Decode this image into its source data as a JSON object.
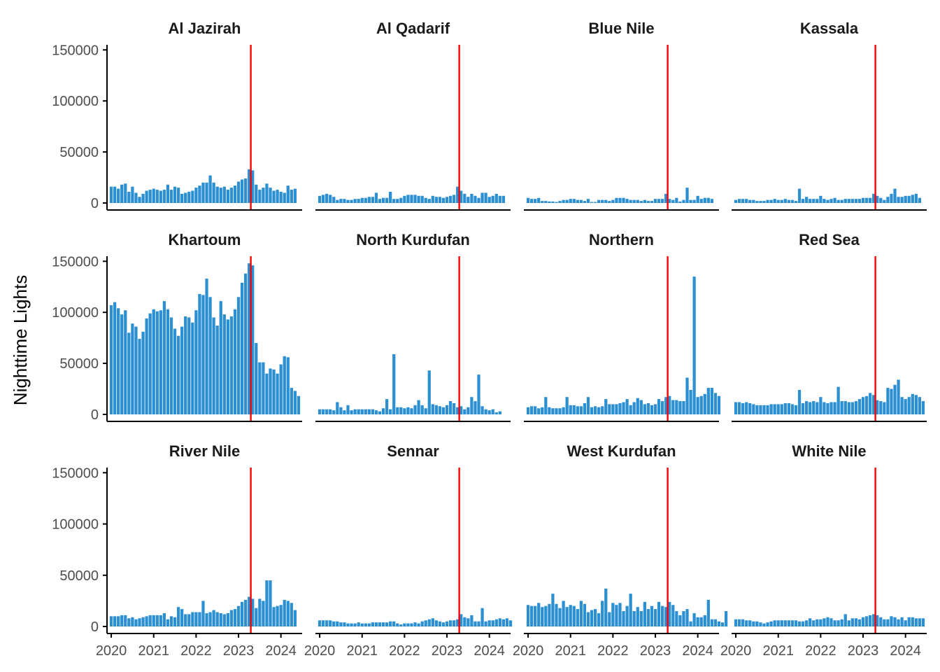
{
  "chart_data": {
    "type": "bar",
    "layout": "facet-grid-3x4",
    "ylabel": "Nighttime Lights",
    "xlabel": "",
    "ylim": [
      0,
      155000
    ],
    "yticks": [
      0,
      50000,
      100000,
      150000
    ],
    "ytick_labels": [
      "0",
      "50000",
      "100000",
      "150000"
    ],
    "xlim": [
      2019.9,
      2024.5
    ],
    "xticks": [
      2020,
      2021,
      2022,
      2023,
      2024
    ],
    "xtick_labels": [
      "2020",
      "2021",
      "2022",
      "2023",
      "2024"
    ],
    "reference_line_x": 2023.29,
    "x_start_year": 2020,
    "months_per_year": 12,
    "bar_color": "#2b8fd1",
    "line_color": "#ff0000",
    "series": [
      {
        "name": "Al Jazirah",
        "values": [
          16000,
          16000,
          14000,
          18000,
          19000,
          11000,
          16000,
          10000,
          6000,
          9000,
          12000,
          13000,
          14000,
          13000,
          12000,
          13000,
          18000,
          13000,
          16000,
          15000,
          9000,
          10000,
          11000,
          12000,
          15000,
          17000,
          20000,
          20000,
          27000,
          20000,
          16000,
          15000,
          16000,
          13000,
          15000,
          17000,
          21000,
          23000,
          24000,
          33000,
          32000,
          18000,
          13000,
          15000,
          19000,
          15000,
          12000,
          13000,
          11000,
          10000,
          17000,
          13000,
          14000
        ]
      },
      {
        "name": "Al Qadarif",
        "values": [
          7000,
          8000,
          9000,
          8000,
          6000,
          3000,
          4000,
          4000,
          3000,
          3000,
          4000,
          4000,
          5000,
          5000,
          6000,
          6000,
          10000,
          4000,
          5000,
          5000,
          11000,
          4000,
          4000,
          5000,
          7000,
          8000,
          8000,
          8000,
          7000,
          7000,
          5000,
          4000,
          7000,
          6000,
          6000,
          5000,
          6000,
          7000,
          8000,
          16000,
          12000,
          9000,
          6000,
          9000,
          7000,
          5000,
          10000,
          10000,
          6000,
          7000,
          9000,
          7000,
          7000
        ]
      },
      {
        "name": "Blue Nile",
        "values": [
          5000,
          4000,
          4000,
          5000,
          2000,
          2000,
          1500,
          1500,
          1000,
          2000,
          3000,
          3000,
          4000,
          4000,
          3000,
          3000,
          2000,
          4000,
          1000,
          1000,
          3000,
          3000,
          3000,
          2000,
          3000,
          5000,
          5000,
          5000,
          4000,
          3000,
          3000,
          3000,
          2000,
          3000,
          2000,
          2000,
          4000,
          4000,
          4000,
          9000,
          4000,
          3000,
          5000,
          1500,
          3000,
          15000,
          3000,
          3000,
          7000,
          4000,
          5000,
          5000,
          4000
        ]
      },
      {
        "name": "Kassala",
        "values": [
          3000,
          4000,
          4000,
          4000,
          3000,
          3000,
          2000,
          2000,
          2000,
          3000,
          3000,
          4000,
          3000,
          3000,
          4000,
          3000,
          3000,
          2000,
          14000,
          4000,
          6000,
          4000,
          4000,
          4000,
          7000,
          4000,
          3000,
          4000,
          5000,
          3000,
          3000,
          4000,
          4000,
          4000,
          4000,
          4000,
          5000,
          5000,
          5000,
          9000,
          7000,
          5000,
          3000,
          6000,
          9000,
          14000,
          6000,
          6000,
          7000,
          7000,
          8000,
          9000,
          5000
        ]
      },
      {
        "name": "Khartoum",
        "values": [
          107000,
          110000,
          104000,
          98000,
          102000,
          80000,
          89000,
          86000,
          74000,
          81000,
          94000,
          99000,
          103000,
          101000,
          102000,
          111000,
          103000,
          95000,
          84000,
          77000,
          86000,
          96000,
          95000,
          90000,
          102000,
          118000,
          117000,
          133000,
          115000,
          95000,
          87000,
          111000,
          98000,
          93000,
          96000,
          103000,
          115000,
          129000,
          138000,
          148000,
          146000,
          70000,
          51000,
          51000,
          40000,
          45000,
          44000,
          40000,
          49000,
          57000,
          56000,
          26000,
          23000,
          18000
        ]
      },
      {
        "name": "North Kurdufan",
        "values": [
          5000,
          5000,
          5000,
          5000,
          4000,
          12000,
          7000,
          4000,
          9000,
          4000,
          5000,
          5000,
          5000,
          5000,
          5000,
          5000,
          4000,
          3000,
          6000,
          15000,
          5000,
          59000,
          7000,
          7000,
          6000,
          7000,
          6000,
          9000,
          14000,
          9000,
          6000,
          43000,
          10000,
          9000,
          8000,
          7000,
          9000,
          13000,
          11000,
          7000,
          8000,
          5000,
          7000,
          17000,
          13000,
          39000,
          8000,
          5000,
          4000,
          5000,
          2000,
          3000
        ]
      },
      {
        "name": "Northern",
        "values": [
          7000,
          8000,
          8000,
          6000,
          7000,
          17000,
          7000,
          6000,
          6000,
          6000,
          7000,
          17000,
          9000,
          9000,
          8000,
          8000,
          11000,
          17000,
          7000,
          8000,
          7000,
          8000,
          15000,
          10000,
          10000,
          10000,
          11000,
          12000,
          15000,
          9000,
          12000,
          16000,
          14000,
          10000,
          11000,
          9000,
          10000,
          15000,
          13000,
          17000,
          18000,
          14000,
          14000,
          13000,
          13000,
          36000,
          24000,
          135000,
          17000,
          18000,
          20000,
          26000,
          26000,
          21000,
          18000
        ]
      },
      {
        "name": "Red Sea",
        "values": [
          12000,
          12000,
          11000,
          12000,
          11000,
          10000,
          9000,
          9000,
          9000,
          9000,
          10000,
          10000,
          10000,
          10000,
          11000,
          11000,
          10000,
          9000,
          24000,
          11000,
          13000,
          12000,
          13000,
          12000,
          17000,
          12000,
          11000,
          12000,
          12000,
          27000,
          13000,
          13000,
          12000,
          12000,
          13000,
          15000,
          17000,
          18000,
          21000,
          19000,
          14000,
          13000,
          12000,
          26000,
          25000,
          29000,
          34000,
          17000,
          15000,
          17000,
          20000,
          19000,
          17000,
          13000
        ]
      },
      {
        "name": "River Nile",
        "values": [
          10000,
          10000,
          10000,
          11000,
          11000,
          8000,
          9000,
          7000,
          8000,
          9000,
          10000,
          11000,
          11000,
          11000,
          11000,
          13000,
          7000,
          10000,
          9000,
          19000,
          17000,
          12000,
          12000,
          14000,
          14000,
          14000,
          25000,
          13000,
          14000,
          16000,
          14000,
          13000,
          12000,
          13000,
          16000,
          17000,
          20000,
          24000,
          26000,
          29000,
          27000,
          18000,
          27000,
          25000,
          45000,
          45000,
          19000,
          20000,
          21000,
          26000,
          25000,
          23000,
          16000
        ]
      },
      {
        "name": "Sennar",
        "values": [
          6000,
          6000,
          6000,
          6000,
          5000,
          5000,
          4000,
          4000,
          3000,
          3000,
          3000,
          4000,
          3000,
          3000,
          3000,
          4000,
          4000,
          4000,
          4000,
          4000,
          5000,
          5000,
          3000,
          2000,
          3000,
          3000,
          3000,
          4000,
          3000,
          5000,
          6000,
          7000,
          8000,
          6000,
          5000,
          4000,
          5000,
          6000,
          6000,
          7000,
          12000,
          9000,
          8000,
          11000,
          5000,
          5000,
          18000,
          5000,
          6000,
          6000,
          7000,
          8000,
          7000,
          8000,
          6000
        ]
      },
      {
        "name": "West Kurdufan",
        "values": [
          21000,
          20000,
          20000,
          23000,
          19000,
          20000,
          22000,
          32000,
          22000,
          18000,
          25000,
          19000,
          21000,
          20000,
          17000,
          25000,
          22000,
          14000,
          16000,
          17000,
          13000,
          25000,
          37000,
          14000,
          23000,
          21000,
          23000,
          15000,
          20000,
          32000,
          15000,
          19000,
          15000,
          24000,
          17000,
          20000,
          17000,
          24000,
          20000,
          19000,
          24000,
          21000,
          15000,
          11000,
          15000,
          17000,
          5000,
          13000,
          9000,
          9000,
          11000,
          26000,
          7000,
          7000,
          5000,
          4000,
          15000
        ]
      },
      {
        "name": "White Nile",
        "values": [
          7000,
          7000,
          7000,
          6000,
          6000,
          5000,
          5000,
          4000,
          3000,
          4000,
          5000,
          6000,
          6000,
          6000,
          6000,
          6000,
          6000,
          6000,
          5000,
          5000,
          6000,
          8000,
          6000,
          7000,
          7000,
          8000,
          9000,
          8000,
          6000,
          6000,
          7000,
          12000,
          6000,
          8000,
          8000,
          7000,
          9000,
          10000,
          11000,
          12000,
          11000,
          9000,
          7000,
          7000,
          10000,
          9000,
          7000,
          9000,
          6000,
          9000,
          9000,
          8000,
          8000,
          8000
        ]
      }
    ]
  }
}
